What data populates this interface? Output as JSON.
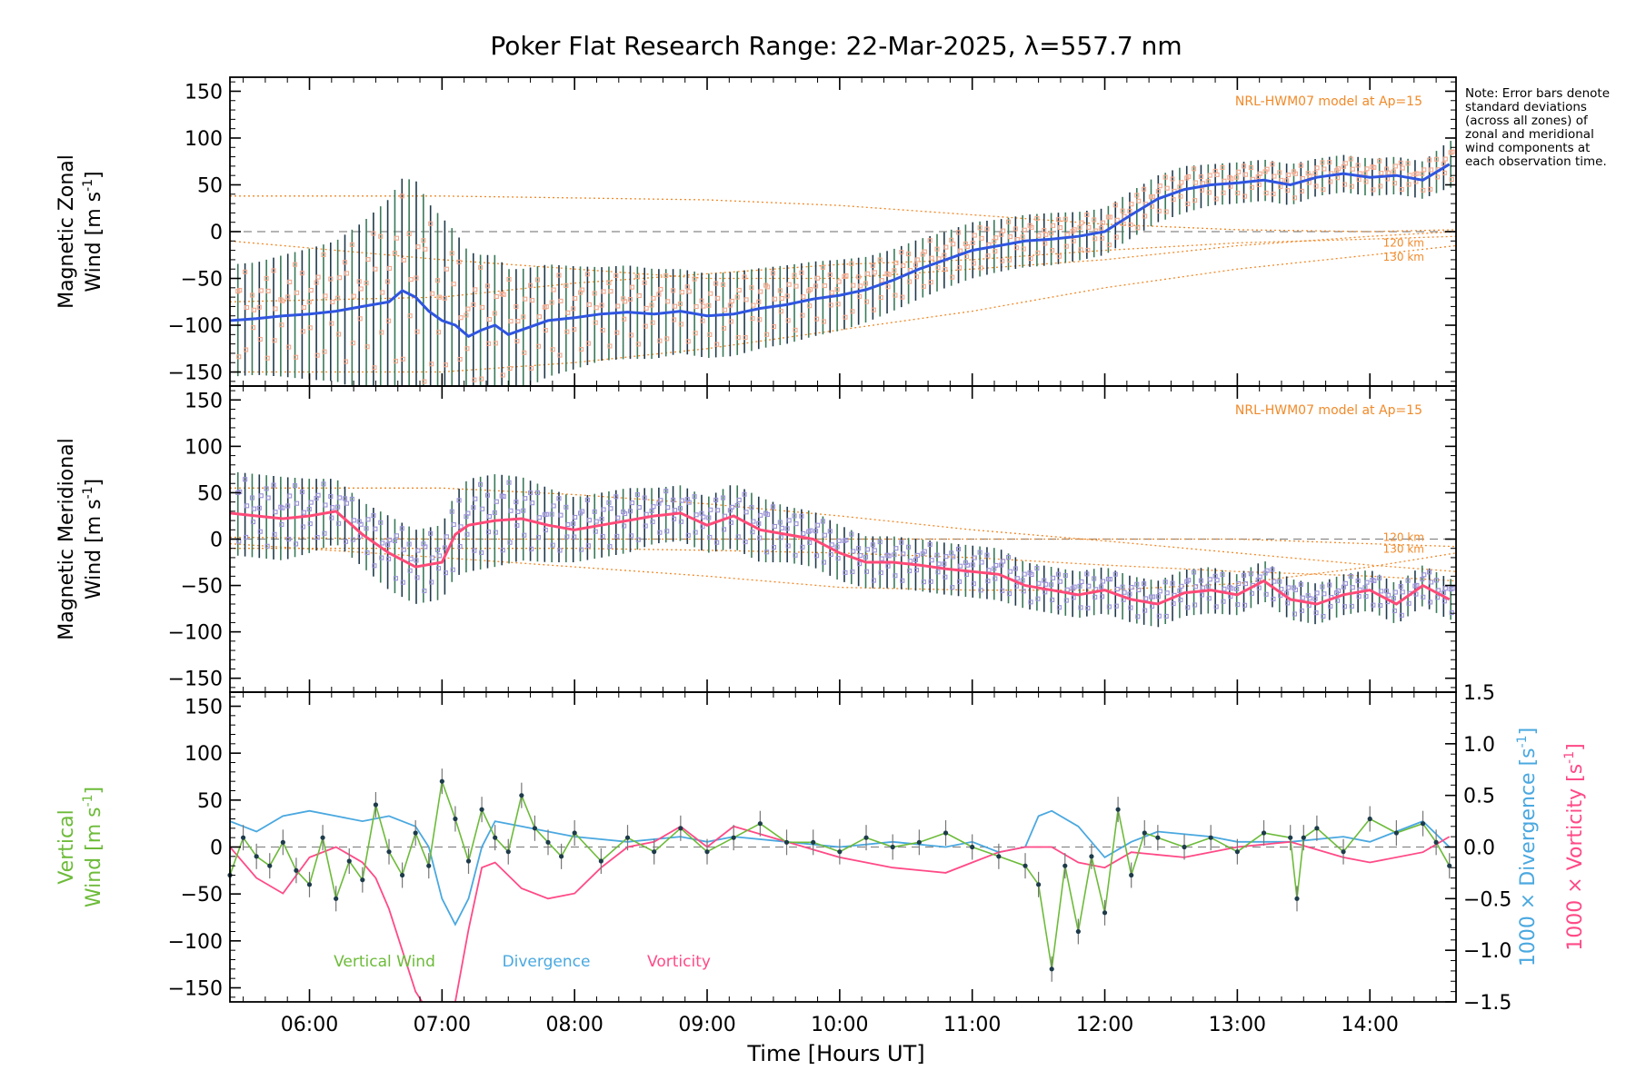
{
  "title": "Poker Flat Research Range: 22-Mar-2025, λ=557.7 nm",
  "note": "Note: Error bars denote standard deviations (across all zones) of zonal and meridional wind components at each observation time.",
  "xaxis": {
    "label": "Time [Hours UT]",
    "ticks": [
      "06:00",
      "07:00",
      "08:00",
      "09:00",
      "10:00",
      "11:00",
      "12:00",
      "13:00",
      "14:00"
    ],
    "range_hours": [
      5.4,
      14.65
    ]
  },
  "colors": {
    "zonal_mean": "#2f55e0",
    "meridional_mean": "#ff4a78",
    "model": "#f08a2a",
    "vertical": "#6dbb3a",
    "divergence": "#4aa8e0",
    "vorticity": "#ff4a86",
    "errorbar_dark": "#1f3a4a",
    "scatter_purple": "#9a92d8",
    "scatter_salmon": "#f4a98e"
  },
  "chart_data": [
    {
      "type": "line",
      "panel": "zonal",
      "ylabel_line1": "Magnetic Zonal",
      "ylabel_line2": "Wind [m s",
      "ylabel_sup": "-1",
      "ylabel_close": "]",
      "yticks": [
        "150",
        "100",
        "50",
        "0",
        "−50",
        "−100",
        "−150"
      ],
      "ylim": [
        -165,
        165
      ],
      "model_label": "NRL-HWM07 model at Ap=15",
      "model_km_labels": [
        "120 km",
        "130 km"
      ],
      "series": [
        {
          "role": "mean",
          "x": [
            5.4,
            5.6,
            5.8,
            6.0,
            6.2,
            6.4,
            6.6,
            6.7,
            6.8,
            6.9,
            7.0,
            7.1,
            7.2,
            7.3,
            7.4,
            7.5,
            7.6,
            7.8,
            8.0,
            8.2,
            8.4,
            8.6,
            8.8,
            9.0,
            9.2,
            9.4,
            9.6,
            9.8,
            10.0,
            10.2,
            10.4,
            10.6,
            10.8,
            11.0,
            11.2,
            11.4,
            11.6,
            11.8,
            12.0,
            12.2,
            12.4,
            12.6,
            12.8,
            13.0,
            13.2,
            13.4,
            13.6,
            13.8,
            14.0,
            14.2,
            14.4,
            14.6
          ],
          "y": [
            -95,
            -93,
            -90,
            -88,
            -85,
            -80,
            -75,
            -63,
            -70,
            -85,
            -95,
            -100,
            -112,
            -105,
            -100,
            -110,
            -105,
            -95,
            -92,
            -88,
            -86,
            -88,
            -85,
            -90,
            -88,
            -82,
            -78,
            -72,
            -68,
            -62,
            -52,
            -40,
            -30,
            -20,
            -15,
            -10,
            -8,
            -5,
            0,
            18,
            35,
            45,
            50,
            52,
            55,
            50,
            58,
            62,
            58,
            60,
            55,
            72
          ]
        },
        {
          "role": "errorbar_halfwidth",
          "y": [
            60,
            60,
            65,
            70,
            75,
            90,
            110,
            120,
            125,
            115,
            110,
            100,
            90,
            80,
            75,
            70,
            65,
            60,
            55,
            50,
            50,
            48,
            45,
            45,
            45,
            43,
            42,
            40,
            38,
            35,
            33,
            32,
            30,
            30,
            28,
            28,
            28,
            26,
            25,
            25,
            25,
            25,
            22,
            22,
            22,
            22,
            20,
            20,
            20,
            20,
            20,
            25
          ]
        },
        {
          "role": "model",
          "curves": [
            {
              "x": [
                5.4,
                7,
                8,
                9,
                10,
                11,
                12,
                13,
                14,
                14.65
              ],
              "y": [
                38,
                38,
                36,
                34,
                28,
                18,
                8,
                2,
                0,
                2
              ]
            },
            {
              "x": [
                5.4,
                7,
                8,
                9,
                10,
                11,
                12,
                13,
                14,
                14.65
              ],
              "y": [
                -10,
                -30,
                -40,
                -50,
                -50,
                -40,
                -30,
                -15,
                -5,
                0
              ]
            },
            {
              "x": [
                5.4,
                7,
                8,
                9,
                10,
                11,
                12,
                13,
                14,
                14.65
              ],
              "y": [
                -75,
                -70,
                -55,
                -45,
                -35,
                -30,
                -20,
                -12,
                -8,
                -5
              ]
            },
            {
              "x": [
                5.4,
                7,
                8,
                9,
                10,
                11,
                12,
                13,
                14,
                14.65
              ],
              "y": [
                -150,
                -150,
                -140,
                -125,
                -105,
                -85,
                -60,
                -40,
                -25,
                -15
              ]
            }
          ]
        }
      ]
    },
    {
      "type": "line",
      "panel": "meridional",
      "ylabel_line1": "Magnetic Meridional",
      "ylabel_line2": "Wind [m s",
      "ylabel_sup": "-1",
      "ylabel_close": "]",
      "yticks": [
        "150",
        "100",
        "50",
        "0",
        "−50",
        "−100",
        "−150"
      ],
      "ylim": [
        -165,
        165
      ],
      "model_label": "NRL-HWM07 model at Ap=15",
      "model_km_labels": [
        "120 km",
        "130 km"
      ],
      "series": [
        {
          "role": "mean",
          "x": [
            5.4,
            5.6,
            5.8,
            6.0,
            6.2,
            6.4,
            6.6,
            6.8,
            7.0,
            7.1,
            7.2,
            7.4,
            7.6,
            7.8,
            8.0,
            8.2,
            8.4,
            8.6,
            8.8,
            9.0,
            9.2,
            9.4,
            9.6,
            9.8,
            10.0,
            10.2,
            10.4,
            10.6,
            10.8,
            11.0,
            11.2,
            11.4,
            11.6,
            11.8,
            12.0,
            12.2,
            12.4,
            12.6,
            12.8,
            13.0,
            13.2,
            13.4,
            13.6,
            13.8,
            14.0,
            14.2,
            14.4,
            14.6
          ],
          "y": [
            28,
            25,
            22,
            25,
            30,
            5,
            -15,
            -30,
            -25,
            5,
            15,
            20,
            22,
            15,
            10,
            15,
            20,
            25,
            28,
            15,
            25,
            10,
            5,
            0,
            -15,
            -25,
            -25,
            -28,
            -32,
            -35,
            -38,
            -50,
            -55,
            -60,
            -55,
            -65,
            -70,
            -58,
            -55,
            -60,
            -45,
            -65,
            -70,
            -60,
            -55,
            -70,
            -50,
            -65
          ]
        },
        {
          "role": "errorbar_halfwidth",
          "y": [
            45,
            45,
            45,
            40,
            35,
            35,
            40,
            40,
            40,
            45,
            50,
            50,
            45,
            40,
            35,
            35,
            35,
            30,
            30,
            30,
            35,
            35,
            30,
            30,
            30,
            28,
            28,
            28,
            28,
            28,
            28,
            25,
            25,
            25,
            25,
            25,
            25,
            25,
            25,
            22,
            22,
            22,
            22,
            22,
            22,
            22,
            22,
            22
          ]
        },
        {
          "role": "model",
          "curves": [
            {
              "x": [
                5.4,
                7,
                8,
                9,
                10,
                11,
                12,
                13,
                14,
                14.65
              ],
              "y": [
                55,
                55,
                48,
                38,
                25,
                10,
                -2,
                -15,
                -28,
                -35
              ]
            },
            {
              "x": [
                5.4,
                7,
                8,
                9,
                10,
                11,
                12,
                13,
                14,
                14.65
              ],
              "y": [
                2,
                0,
                0,
                0,
                0,
                0,
                0,
                0,
                -5,
                -8
              ]
            },
            {
              "x": [
                5.4,
                7,
                8,
                9,
                10,
                11,
                12,
                13,
                14,
                14.65
              ],
              "y": [
                -10,
                -10,
                -10,
                -12,
                -15,
                -20,
                -28,
                -35,
                -40,
                -45
              ]
            },
            {
              "x": [
                5.4,
                7,
                8,
                9,
                10,
                11,
                12,
                13,
                14,
                14.65
              ],
              "y": [
                -5,
                -20,
                -30,
                -40,
                -52,
                -55,
                -55,
                -48,
                -30,
                -15
              ]
            }
          ]
        }
      ]
    },
    {
      "type": "line",
      "panel": "vertical",
      "ylabel_line1": "Vertical",
      "ylabel_line2": "Wind [m s",
      "ylabel_sup": "-1",
      "ylabel_close": "]",
      "yticks": [
        "150",
        "100",
        "50",
        "0",
        "−50",
        "−100",
        "−150"
      ],
      "ylim": [
        -165,
        165
      ],
      "y2label_div": "1000 × Divergence [s",
      "y2label_vort": "1000 × Vorticity [s",
      "y2label_sup": "-1",
      "y2label_close": "]",
      "y2ticks": [
        "1.5",
        "1.0",
        "0.5",
        "0.0",
        "−0.5",
        "−1.0",
        "−1.5"
      ],
      "y2lim": [
        -1.5,
        1.5
      ],
      "legend": [
        "Vertical Wind",
        "Divergence",
        "Vorticity"
      ],
      "series": [
        {
          "name": "Vertical Wind",
          "x": [
            5.4,
            5.5,
            5.6,
            5.7,
            5.8,
            5.9,
            6.0,
            6.1,
            6.2,
            6.3,
            6.4,
            6.5,
            6.6,
            6.7,
            6.8,
            6.9,
            7.0,
            7.1,
            7.2,
            7.3,
            7.4,
            7.5,
            7.6,
            7.7,
            7.8,
            7.9,
            8.0,
            8.2,
            8.4,
            8.6,
            8.8,
            9.0,
            9.2,
            9.4,
            9.6,
            9.8,
            10.0,
            10.2,
            10.4,
            10.6,
            10.8,
            11.0,
            11.2,
            11.4,
            11.5,
            11.6,
            11.7,
            11.8,
            11.9,
            12.0,
            12.1,
            12.2,
            12.3,
            12.4,
            12.6,
            12.8,
            13.0,
            13.2,
            13.4,
            13.45,
            13.5,
            13.6,
            13.8,
            14.0,
            14.2,
            14.4,
            14.5,
            14.6
          ],
          "y": [
            -30,
            10,
            -10,
            -20,
            5,
            -25,
            -40,
            10,
            -55,
            -15,
            -35,
            45,
            -5,
            -30,
            15,
            -20,
            70,
            30,
            -15,
            40,
            10,
            -5,
            55,
            20,
            5,
            -10,
            15,
            -15,
            10,
            -5,
            20,
            -5,
            10,
            25,
            5,
            5,
            -5,
            10,
            0,
            5,
            15,
            0,
            -10,
            -20,
            -40,
            -130,
            -20,
            -90,
            -10,
            -70,
            40,
            -30,
            15,
            10,
            0,
            10,
            -5,
            15,
            10,
            -55,
            10,
            20,
            -5,
            30,
            15,
            25,
            5,
            -20
          ]
        },
        {
          "name": "Divergence",
          "x": [
            5.4,
            5.5,
            5.6,
            5.8,
            6.0,
            6.2,
            6.4,
            6.6,
            6.8,
            6.9,
            7.0,
            7.1,
            7.2,
            7.3,
            7.4,
            7.6,
            7.8,
            8.0,
            8.4,
            8.8,
            9.0,
            9.2,
            9.6,
            10.0,
            10.4,
            10.8,
            11.0,
            11.2,
            11.4,
            11.5,
            11.6,
            11.8,
            12.0,
            12.2,
            12.4,
            12.8,
            13.0,
            13.4,
            13.8,
            14.0,
            14.4,
            14.6
          ],
          "y": [
            0.25,
            0.2,
            0.15,
            0.3,
            0.35,
            0.3,
            0.25,
            0.3,
            0.2,
            0.0,
            -0.5,
            -0.75,
            -0.5,
            0.0,
            0.25,
            0.2,
            0.15,
            0.1,
            0.05,
            0.1,
            0.05,
            0.1,
            0.05,
            0.0,
            0.05,
            0.0,
            0.05,
            -0.05,
            0.0,
            0.3,
            0.35,
            0.2,
            -0.1,
            0.05,
            0.15,
            0.1,
            0.05,
            0.05,
            0.1,
            0.05,
            0.25,
            0.0
          ]
        },
        {
          "name": "Vorticity",
          "x": [
            5.4,
            5.6,
            5.8,
            6.0,
            6.2,
            6.4,
            6.5,
            6.6,
            6.7,
            6.8,
            6.9,
            7.0,
            7.1,
            7.2,
            7.3,
            7.4,
            7.6,
            7.8,
            8.0,
            8.2,
            8.4,
            8.6,
            8.8,
            9.0,
            9.2,
            9.6,
            10.0,
            10.4,
            10.8,
            11.0,
            11.2,
            11.4,
            11.6,
            11.8,
            12.0,
            12.2,
            12.6,
            13.0,
            13.4,
            13.8,
            14.0,
            14.4,
            14.6
          ],
          "y": [
            0.0,
            -0.3,
            -0.45,
            -0.1,
            0.0,
            -0.15,
            -0.3,
            -0.6,
            -1.0,
            -1.4,
            -1.6,
            -1.9,
            -1.5,
            -0.8,
            -0.2,
            -0.15,
            -0.4,
            -0.5,
            -0.45,
            -0.2,
            0.0,
            0.05,
            0.2,
            0.0,
            0.2,
            0.05,
            -0.1,
            -0.2,
            -0.25,
            -0.15,
            -0.05,
            0.0,
            0.0,
            -0.15,
            -0.2,
            -0.05,
            -0.1,
            0.0,
            0.05,
            -0.1,
            -0.15,
            -0.05,
            0.1
          ]
        }
      ]
    }
  ]
}
